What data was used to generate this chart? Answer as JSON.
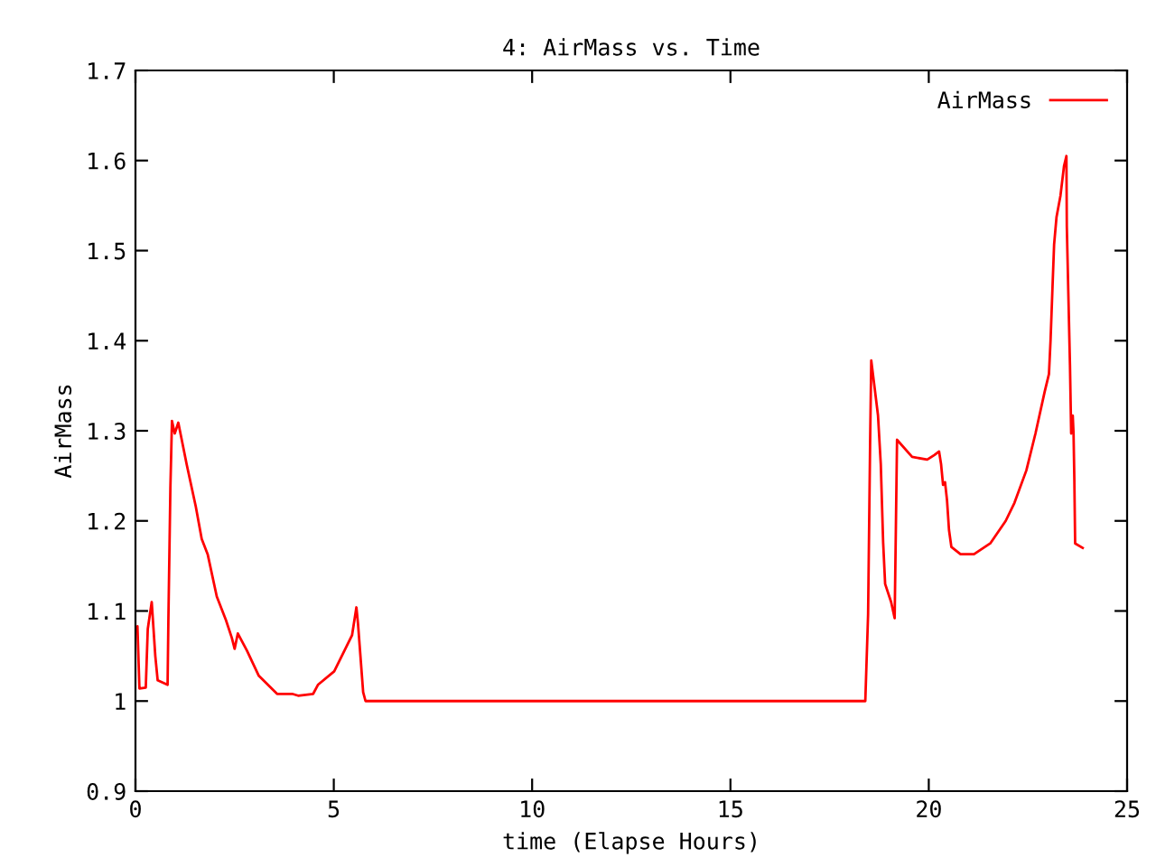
{
  "chart_data": {
    "type": "line",
    "title": "4: AirMass vs. Time",
    "xlabel": "time (Elapse Hours)",
    "ylabel": "AirMass",
    "series": [
      {
        "name": "AirMass",
        "color": "#ff0000",
        "x": [
          0,
          0.05,
          0.1,
          0.26,
          0.31,
          0.41,
          0.5,
          0.56,
          0.81,
          0.83,
          0.88,
          0.92,
          0.99,
          1.08,
          1.29,
          1.52,
          1.67,
          1.82,
          2.05,
          2.28,
          2.43,
          2.5,
          2.58,
          2.81,
          3.11,
          3.57,
          3.95,
          4.1,
          4.48,
          4.6,
          5.01,
          5.46,
          5.57,
          5.61,
          5.74,
          5.8,
          18.35,
          18.4,
          18.47,
          18.52,
          18.55,
          18.62,
          18.72,
          18.79,
          18.85,
          18.9,
          19.05,
          19.14,
          19.17,
          19.2,
          19.58,
          19.96,
          20.14,
          20.26,
          20.31,
          20.36,
          20.41,
          20.46,
          20.51,
          20.57,
          20.8,
          21.14,
          21.55,
          21.94,
          22.16,
          22.46,
          22.69,
          22.92,
          23.03,
          23.07,
          23.12,
          23.16,
          23.22,
          23.32,
          23.41,
          23.47,
          23.48,
          23.56,
          23.59,
          23.63,
          23.65,
          23.67,
          23.69,
          23.88
        ],
        "values": [
          1.08,
          1.083,
          1.014,
          1.015,
          1.08,
          1.11,
          1.05,
          1.023,
          1.018,
          1.09,
          1.236,
          1.311,
          1.297,
          1.309,
          1.263,
          1.216,
          1.18,
          1.163,
          1.116,
          1.09,
          1.07,
          1.058,
          1.075,
          1.056,
          1.028,
          1.008,
          1.008,
          1.006,
          1.008,
          1.018,
          1.033,
          1.073,
          1.104,
          1.086,
          1.01,
          1.0,
          1.0,
          1.0,
          1.096,
          1.283,
          1.378,
          1.353,
          1.317,
          1.263,
          1.176,
          1.13,
          1.11,
          1.092,
          1.19,
          1.29,
          1.271,
          1.268,
          1.273,
          1.277,
          1.263,
          1.24,
          1.243,
          1.223,
          1.19,
          1.171,
          1.163,
          1.163,
          1.175,
          1.2,
          1.22,
          1.256,
          1.297,
          1.343,
          1.363,
          1.4,
          1.46,
          1.507,
          1.537,
          1.561,
          1.594,
          1.605,
          1.527,
          1.373,
          1.297,
          1.317,
          1.297,
          1.246,
          1.175,
          1.17
        ]
      }
    ],
    "xlim": [
      0,
      25
    ],
    "xticks": [
      0,
      5,
      10,
      15,
      20,
      25
    ],
    "ylim": [
      0.9,
      1.7
    ],
    "yticks": [
      0.9,
      1,
      1.1,
      1.2,
      1.3,
      1.4,
      1.5,
      1.6,
      1.7
    ],
    "grid": false,
    "legend": "top right",
    "marker": "none",
    "line_style": "solid"
  }
}
